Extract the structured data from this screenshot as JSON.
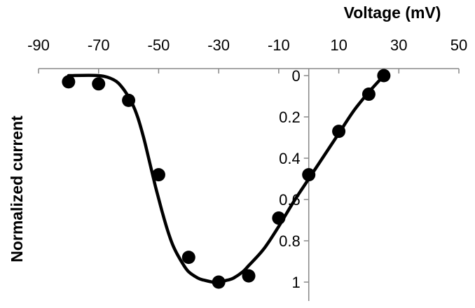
{
  "chart_data": {
    "type": "scatter",
    "title": "",
    "xlabel": "Voltage (mV)",
    "ylabel": "Normalized current",
    "xlim": [
      -90,
      50
    ],
    "ylim": [
      0,
      1.1
    ],
    "y_inverted": true,
    "x_axis_position": "top",
    "y_axis_crosses_at_x": 0,
    "grid": false,
    "legend": "none",
    "x_ticks": [
      "-90",
      "-70",
      "-50",
      "-30",
      "-10",
      "10",
      "30",
      "50"
    ],
    "y_ticks": [
      "0",
      "0.2",
      "0.4",
      "0.6",
      "0.8",
      "1"
    ],
    "series": [
      {
        "type": "scatter",
        "x": [
          -80,
          -70,
          -60,
          -50,
          -40,
          -30,
          -20,
          0,
          -10,
          10,
          20,
          25
        ],
        "y": [
          0.03,
          0.04,
          0.12,
          0.48,
          0.88,
          1.0,
          0.97,
          0.48,
          0.69,
          0.27,
          0.09,
          0.0
        ]
      },
      {
        "type": "line",
        "x": [
          -80,
          -70,
          -65,
          -62,
          -59,
          -57,
          -55,
          -53,
          -51,
          -49,
          -47,
          -45,
          -42,
          -40,
          -37,
          -35,
          -32,
          -30,
          -27,
          -25,
          -22,
          -20,
          -15,
          -10,
          -5,
          0,
          5,
          10,
          15,
          20,
          25
        ],
        "y": [
          0.0,
          0.0,
          0.02,
          0.06,
          0.13,
          0.2,
          0.3,
          0.42,
          0.54,
          0.65,
          0.75,
          0.83,
          0.91,
          0.95,
          0.98,
          0.99,
          1.0,
          1.0,
          0.99,
          0.98,
          0.95,
          0.92,
          0.84,
          0.73,
          0.61,
          0.5,
          0.39,
          0.28,
          0.17,
          0.08,
          0.0
        ]
      }
    ],
    "colors": {
      "marker": "#000000",
      "line": "#000000",
      "axis": "#888888"
    }
  }
}
